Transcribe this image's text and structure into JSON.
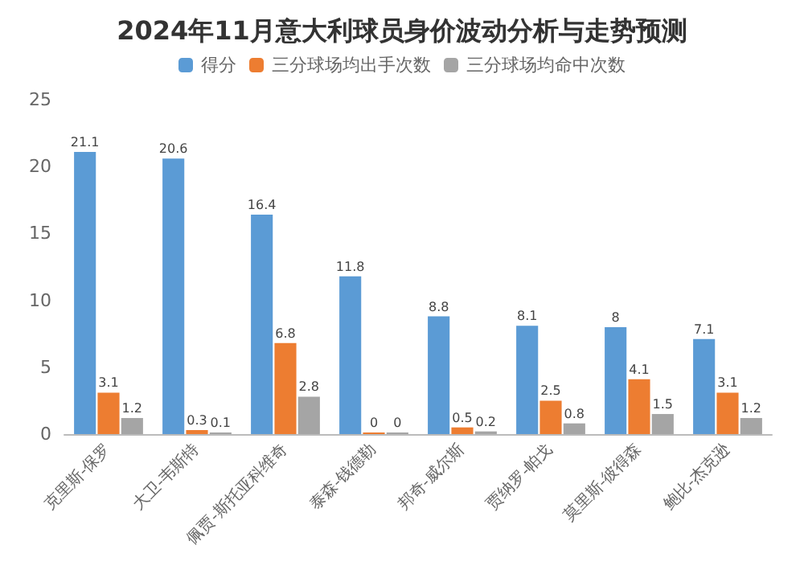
{
  "chart_data": {
    "type": "bar",
    "title": "2024年11月意大利球员身价波动分析与走势预测",
    "categories": [
      "克里斯-保罗",
      "大卫-韦斯特",
      "佩贾-斯托亚科维奇",
      "泰森-钱德勒",
      "邦奇-威尔斯",
      "贾纳罗-帕戈",
      "莫里斯-彼得森",
      "鲍比-杰克逊"
    ],
    "series": [
      {
        "name": "得分",
        "color": "#5b9bd5",
        "values": [
          21.1,
          20.6,
          16.4,
          11.8,
          8.8,
          8.1,
          8,
          7.1
        ]
      },
      {
        "name": "三分球场均出手次数",
        "color": "#ed7d31",
        "values": [
          3.1,
          0.3,
          6.8,
          0,
          0.5,
          2.5,
          4.1,
          3.1
        ]
      },
      {
        "name": "三分球场均命中次数",
        "color": "#a5a5a5",
        "values": [
          1.2,
          0.1,
          2.8,
          0,
          0.2,
          0.8,
          1.5,
          1.2
        ]
      }
    ],
    "ylim": [
      0,
      25
    ],
    "yticks": [
      0,
      5,
      10,
      15,
      20,
      25
    ],
    "grid": false,
    "legend": "top",
    "data_labels": true
  }
}
